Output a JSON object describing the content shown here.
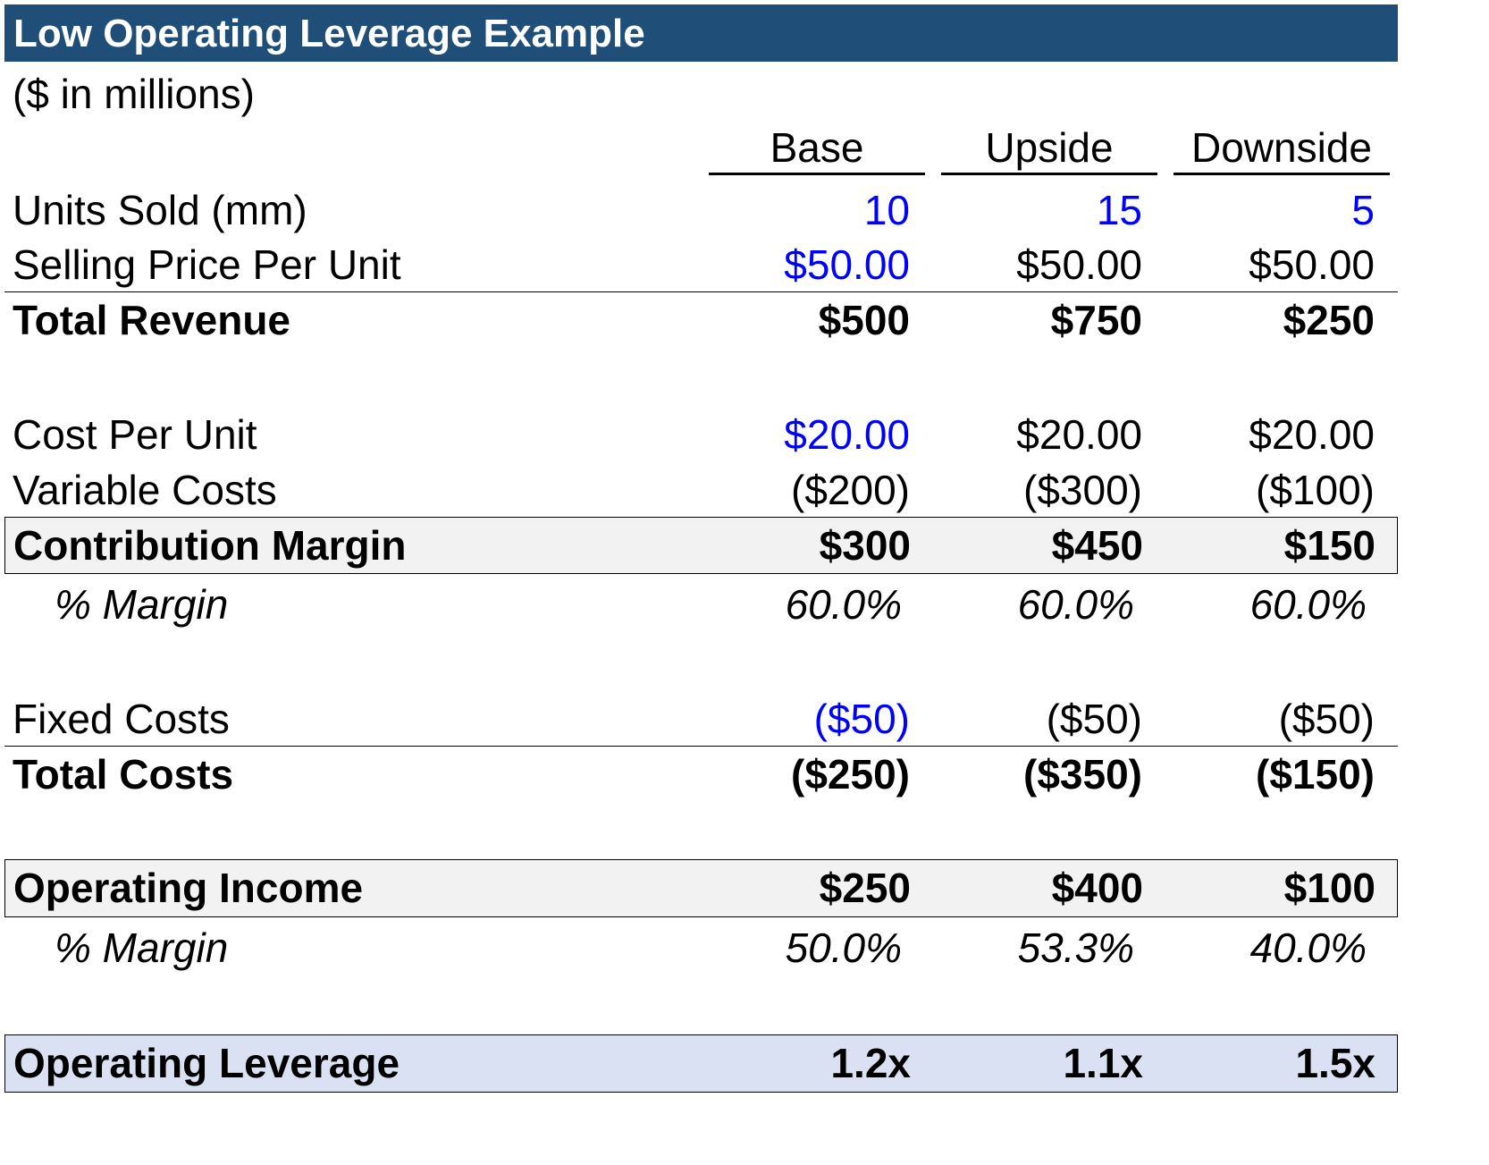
{
  "title": "Low Operating Leverage Example",
  "subtitle": "($ in millions)",
  "columns": [
    "Base",
    "Upside",
    "Downside"
  ],
  "colors": {
    "title_bar": "#1f4e79",
    "input_text": "#0000ff",
    "highlight_row": "#f2f2f2",
    "leverage_row": "#d9e1f2"
  },
  "rows": {
    "units_sold": {
      "label": "Units Sold (mm)",
      "values": [
        "10",
        "15",
        "5"
      ]
    },
    "selling_price": {
      "label": "Selling Price Per Unit",
      "values": [
        "$50.00",
        "$50.00",
        "$50.00"
      ]
    },
    "total_revenue": {
      "label": "Total Revenue",
      "values": [
        "$500",
        "$750",
        "$250"
      ]
    },
    "cost_per_unit": {
      "label": "Cost Per Unit",
      "values": [
        "$20.00",
        "$20.00",
        "$20.00"
      ]
    },
    "variable_costs": {
      "label": "Variable Costs",
      "values": [
        "($200)",
        "($300)",
        "($100)"
      ]
    },
    "contribution_margin": {
      "label": "Contribution Margin",
      "values": [
        "$300",
        "$450",
        "$150"
      ]
    },
    "cm_pct_margin": {
      "label": "% Margin",
      "values": [
        "60.0%",
        "60.0%",
        "60.0%"
      ]
    },
    "fixed_costs": {
      "label": "Fixed Costs",
      "values": [
        "($50)",
        "($50)",
        "($50)"
      ]
    },
    "total_costs": {
      "label": "Total Costs",
      "values": [
        "($250)",
        "($350)",
        "($150)"
      ]
    },
    "operating_income": {
      "label": "Operating Income",
      "values": [
        "$250",
        "$400",
        "$100"
      ]
    },
    "oi_pct_margin": {
      "label": "% Margin",
      "values": [
        "50.0%",
        "53.3%",
        "40.0%"
      ]
    },
    "operating_leverage": {
      "label": "Operating Leverage",
      "values": [
        "1.2x",
        "1.1x",
        "1.5x"
      ]
    }
  }
}
